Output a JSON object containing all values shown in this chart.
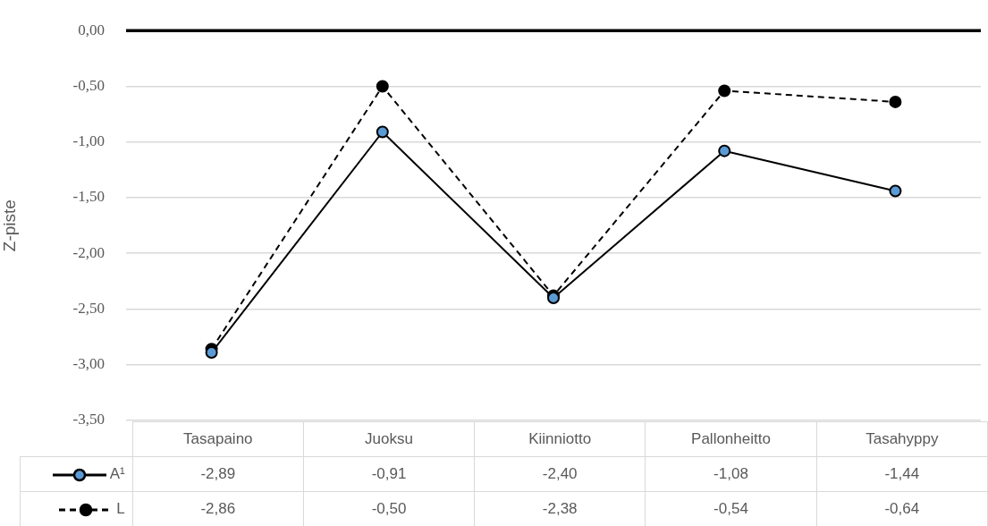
{
  "chart_data": {
    "type": "line",
    "ylabel": "Z-piste",
    "categories": [
      "Tasapaino",
      "Juoksu",
      "Kiinniotto",
      "Pallonheitto",
      "Tasahyppy"
    ],
    "series": [
      {
        "name": "A¹",
        "color": "#000000",
        "colors": [
          "#5b9bd5",
          "#5b9bd5",
          "#5b9bd5",
          "#5b9bd5",
          "#5b9bd5"
        ],
        "line_style": "solid",
        "values": [
          -2.89,
          -0.91,
          -2.4,
          -1.08,
          -1.44
        ],
        "value_labels": [
          "-2,89",
          "-0,91",
          "-2,40",
          "-1,08",
          "-1,44"
        ]
      },
      {
        "name": "L",
        "color": "#000000",
        "line_style": "dashed",
        "values": [
          -2.86,
          -0.5,
          -2.38,
          -0.54,
          -0.64
        ],
        "value_labels": [
          "-2,86",
          "-0,50",
          "-2,38",
          "-0,54",
          "-0,64"
        ]
      }
    ],
    "ylim": [
      -3.5,
      0
    ],
    "yticks": [
      {
        "value": 0,
        "label": "0,00"
      },
      {
        "value": -0.5,
        "label": "-0,50"
      },
      {
        "value": -1,
        "label": "-1,00"
      },
      {
        "value": -1.5,
        "label": "-1,50"
      },
      {
        "value": -2,
        "label": "-2,00"
      },
      {
        "value": -2.5,
        "label": "-2,50"
      },
      {
        "value": -3,
        "label": "-3,00"
      },
      {
        "value": -3.5,
        "label": "-3,50"
      }
    ],
    "ref_lines": [
      {
        "axis": "y",
        "value": 0,
        "color": "#000000"
      }
    ],
    "grid": "y",
    "legend": "bottom",
    "marker": "circle"
  }
}
